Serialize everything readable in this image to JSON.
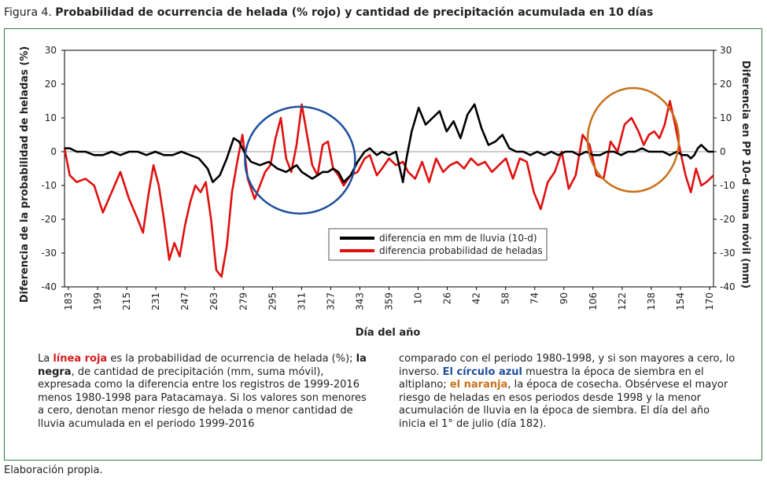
{
  "figure": {
    "label": "Figura 4.",
    "title": "Probabilidad de ocurrencia de helada (% rojo) y cantidad de precipitación acumulada en 10 días"
  },
  "chart_data": {
    "type": "line",
    "xlabel": "Día del año",
    "ylabel_left": "Diferencia de la probabilidad de heladas (%)",
    "ylabel_right": "Diferencia en PP 10-d suma móvil (mm)",
    "ylim": [
      -40,
      30
    ],
    "yticks": [
      30,
      20,
      10,
      0,
      -10,
      -20,
      -30,
      -40
    ],
    "xticks": [
      "183",
      "199",
      "215",
      "231",
      "247",
      "263",
      "279",
      "295",
      "311",
      "327",
      "343",
      "359",
      "10",
      "26",
      "42",
      "58",
      "74",
      "90",
      "106",
      "122",
      "138",
      "154",
      "170"
    ],
    "grid": false,
    "legend_position": "center",
    "series": [
      {
        "name": "diferencia en mm de lluvia (10-d)",
        "color": "#000000",
        "x": [
          183,
          186,
          190,
          195,
          200,
          205,
          210,
          215,
          220,
          225,
          230,
          235,
          240,
          245,
          250,
          255,
          260,
          265,
          268,
          272,
          276,
          280,
          283,
          287,
          290,
          295,
          300,
          305,
          310,
          313,
          316,
          319,
          322,
          325,
          328,
          331,
          334,
          337,
          340,
          343,
          347,
          351,
          355,
          358,
          362,
          365,
          369,
          373,
          377,
          379,
          382,
          386,
          390,
          394,
          398,
          402,
          406,
          410,
          414,
          418,
          422,
          426,
          430,
          434,
          438,
          442,
          446,
          450,
          454,
          458,
          462,
          466,
          470,
          474,
          478,
          482,
          486,
          490,
          494,
          498,
          502,
          506,
          510,
          514,
          518,
          522,
          526,
          530,
          534,
          537,
          540,
          542,
          544,
          546,
          548,
          550,
          552,
          555
        ],
        "values": [
          1,
          1,
          0,
          0,
          -1,
          -1,
          0,
          -1,
          0,
          0,
          -1,
          0,
          -1,
          -1,
          0,
          -1,
          -2,
          -5,
          -9,
          -7,
          -2,
          4,
          3,
          -1,
          -3,
          -4,
          -3,
          -5,
          -6,
          -5,
          -4,
          -6,
          -7,
          -8,
          -7,
          -6,
          -6,
          -5,
          -6,
          -9,
          -7,
          -3,
          0,
          1,
          -1,
          0,
          -1,
          0,
          -9,
          -2,
          6,
          13,
          8,
          10,
          12,
          6,
          9,
          4,
          11,
          14,
          7,
          2,
          3,
          5,
          1,
          0,
          0,
          -1,
          0,
          -1,
          0,
          -1,
          0,
          0,
          -1,
          0,
          -1,
          -1,
          0,
          0,
          -1,
          0,
          0,
          1,
          0,
          0,
          0,
          -1,
          0,
          -1,
          -1,
          -2,
          -1,
          1,
          2,
          1,
          0,
          0
        ]
      },
      {
        "name": "diferencia probabilidad de heladas",
        "color": "#e01010",
        "x": [
          183,
          186,
          190,
          195,
          200,
          205,
          210,
          215,
          220,
          225,
          228,
          231,
          234,
          237,
          240,
          243,
          246,
          249,
          252,
          255,
          258,
          261,
          264,
          267,
          270,
          273,
          276,
          279,
          282,
          285,
          288,
          292,
          295,
          298,
          301,
          304,
          307,
          310,
          313,
          316,
          319,
          322,
          325,
          328,
          331,
          334,
          337,
          340,
          343,
          347,
          351,
          355,
          358,
          362,
          365,
          369,
          373,
          377,
          380,
          384,
          388,
          392,
          396,
          400,
          404,
          408,
          412,
          416,
          420,
          424,
          428,
          432,
          436,
          440,
          444,
          448,
          452,
          456,
          460,
          464,
          468,
          472,
          476,
          480,
          484,
          488,
          492,
          496,
          500,
          504,
          508,
          512,
          515,
          518,
          521,
          524,
          527,
          530,
          533,
          536,
          539,
          542,
          545,
          548,
          551,
          555
        ],
        "values": [
          1,
          -7,
          -9,
          -8,
          -10,
          -18,
          -12,
          -6,
          -14,
          -20,
          -24,
          -13,
          -4,
          -10,
          -20,
          -32,
          -27,
          -31,
          -22,
          -15,
          -10,
          -12,
          -9,
          -20,
          -35,
          -37,
          -28,
          -12,
          -3,
          5,
          -8,
          -14,
          -10,
          -6,
          -4,
          4,
          10,
          -2,
          -6,
          2,
          14,
          5,
          -4,
          -7,
          2,
          3,
          -5,
          -7,
          -10,
          -7,
          -6,
          -2,
          -1,
          -7,
          -5,
          -2,
          -4,
          -3,
          -6,
          -8,
          -3,
          -9,
          -2,
          -6,
          -4,
          -3,
          -5,
          -2,
          -4,
          -3,
          -6,
          -4,
          -2,
          -8,
          -2,
          -3,
          -12,
          -17,
          -9,
          -6,
          0,
          -11,
          -7,
          5,
          2,
          -7,
          -8,
          3,
          0,
          8,
          10,
          6,
          2,
          5,
          6,
          4,
          8,
          15,
          8,
          0,
          -7,
          -12,
          -5,
          -10,
          -9,
          -7
        ]
      }
    ]
  },
  "circles": {
    "blue": "#1f4f9c",
    "orange": "#c8711b"
  },
  "caption": {
    "l1_red": "línea roja",
    "l1_a": "La ",
    "l1_b": " es la probabilidad de ocurrencia de helada (%); ",
    "l2_black": "la negra",
    "l2_b": ", de cantidad de precipitación (mm, suma móvil), expresada como la diferencia entre los registros de 1999-2016 menos 1980-1998 para Patacamaya. Si los valores son menores a cero, denotan menor riesgo de helada o menor cantidad de lluvia acumulada en el periodo 1999-2016",
    "r_a": "comparado con el periodo 1980-1998, y si son mayores a cero, lo inverso. ",
    "r_blue": "El círculo azul",
    "r_b": " muestra la época de siembra en el altiplano; ",
    "r_orange": "el naranja",
    "r_c": ", la época de cosecha. Obsérvese el mayor riesgo de heladas en esos periodos desde 1998 y la menor acumulación de lluvia en la época de siembra. El día del año inicia el 1° de julio (día 182)."
  },
  "source": "Elaboración propia."
}
